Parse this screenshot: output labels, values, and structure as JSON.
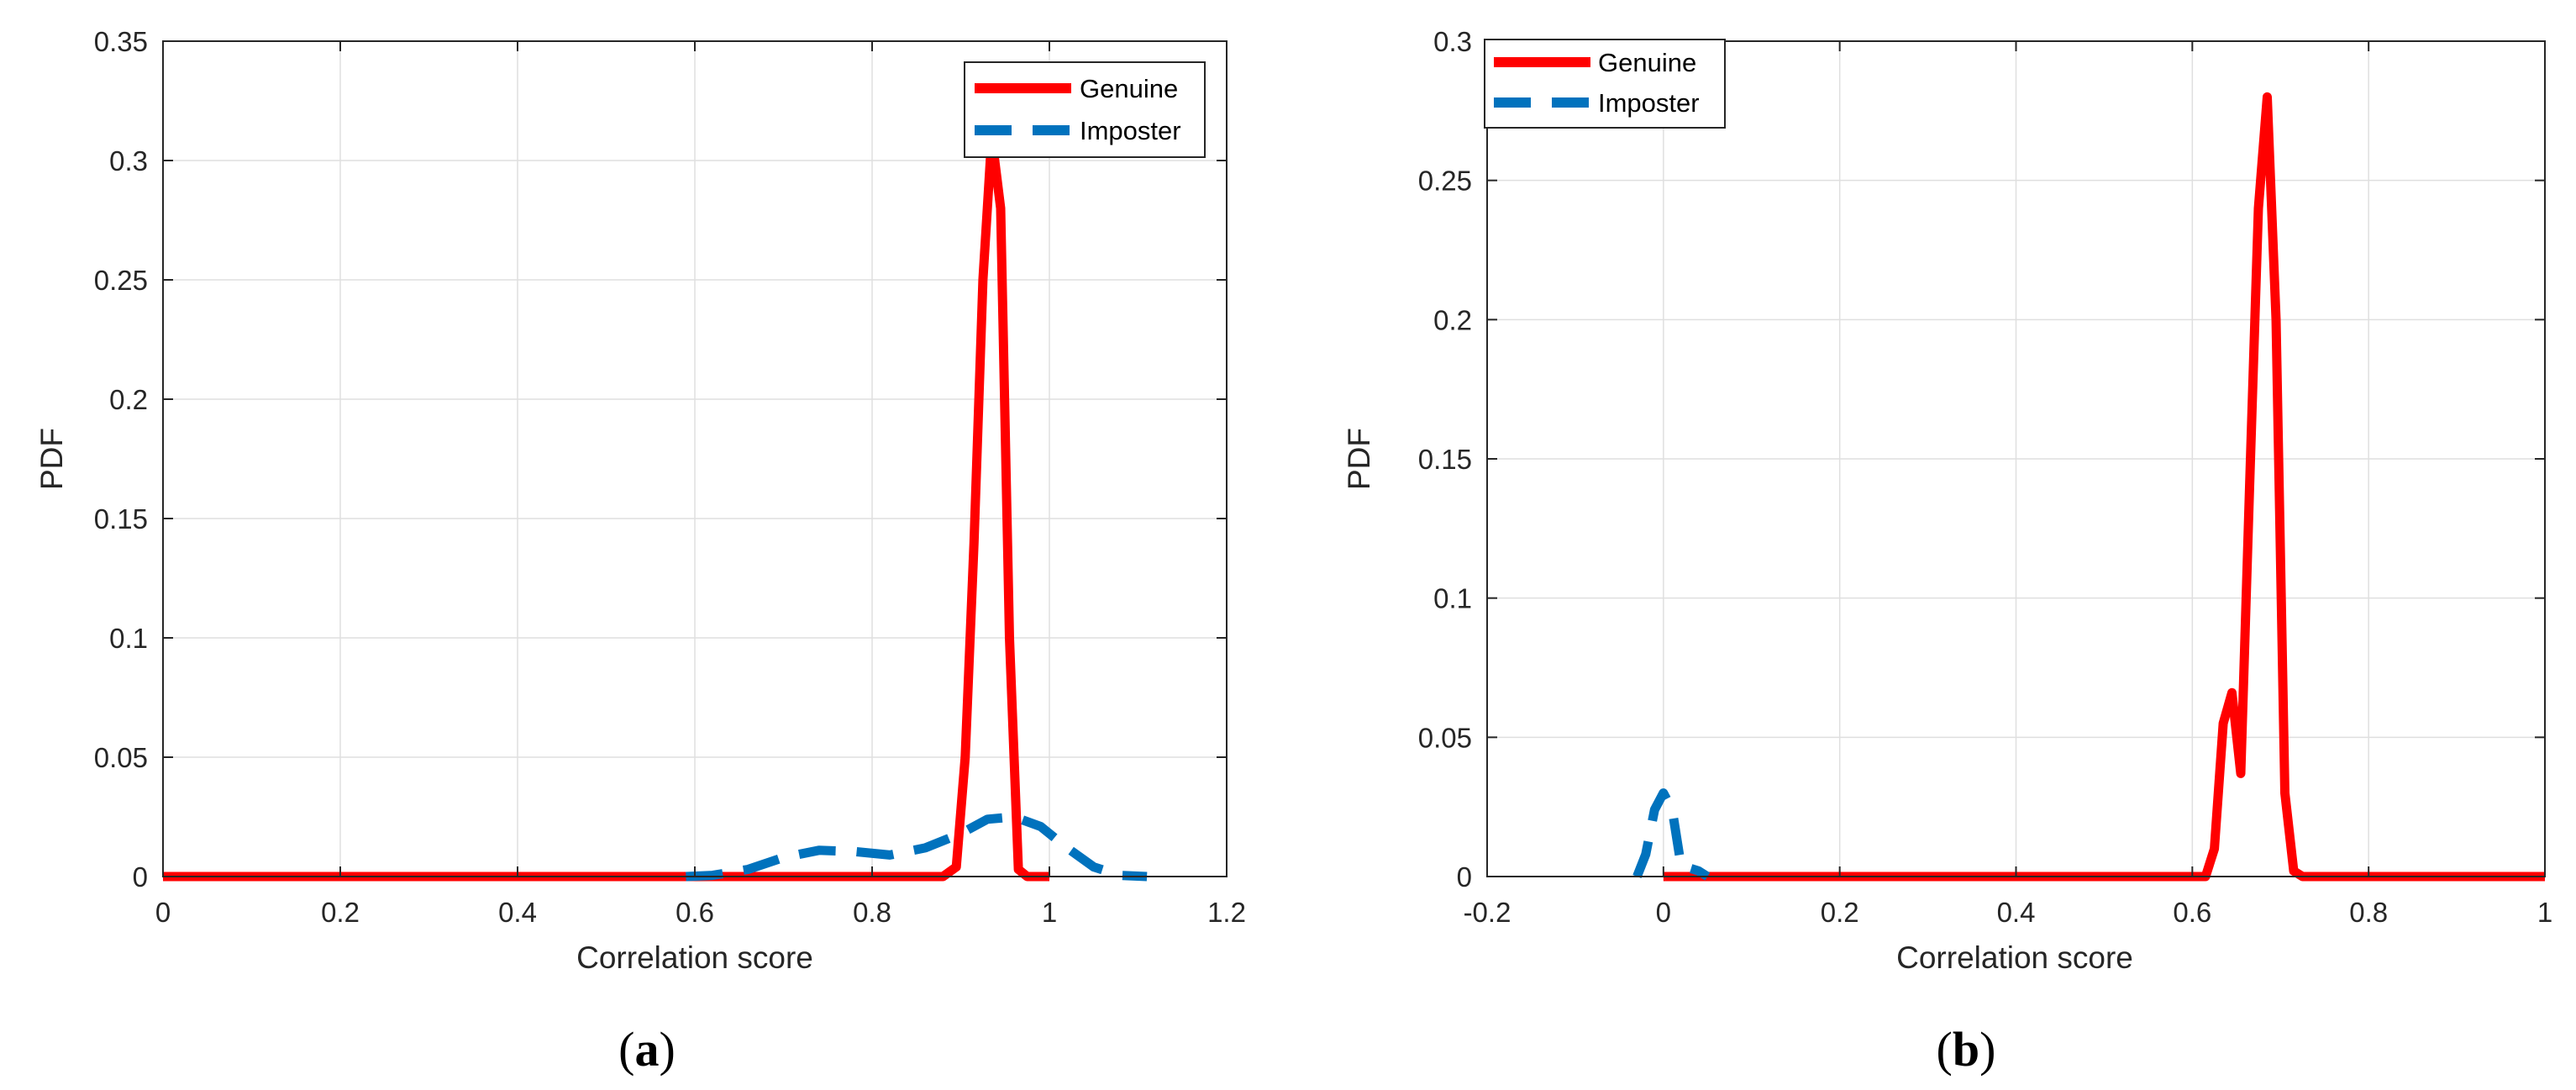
{
  "chart_data": [
    {
      "id": "a",
      "type": "line",
      "xlabel": "Correlation score",
      "ylabel": "PDF",
      "xlim": [
        0,
        1.2
      ],
      "ylim": [
        0,
        0.35
      ],
      "xticks": [
        "0",
        "0.2",
        "0.4",
        "0.6",
        "0.8",
        "1",
        "1.2"
      ],
      "yticks": [
        "0",
        "0.05",
        "0.1",
        "0.15",
        "0.2",
        "0.25",
        "0.3",
        "0.35"
      ],
      "xtick_values": [
        0,
        0.2,
        0.4,
        0.6,
        0.8,
        1.0,
        1.2
      ],
      "ytick_values": [
        0,
        0.05,
        0.1,
        0.15,
        0.2,
        0.25,
        0.3,
        0.35
      ],
      "grid": true,
      "legend_position": "top-right",
      "caption_letter": "a",
      "series": [
        {
          "name": "Genuine",
          "color": "#ff0000",
          "style": "solid",
          "x": [
            0,
            0.1,
            0.2,
            0.3,
            0.4,
            0.5,
            0.6,
            0.7,
            0.8,
            0.88,
            0.895,
            0.905,
            0.915,
            0.925,
            0.935,
            0.945,
            0.955,
            0.965,
            0.975,
            1.0
          ],
          "y": [
            0,
            0,
            0,
            0,
            0,
            0,
            0,
            0,
            0,
            0,
            0.004,
            0.05,
            0.14,
            0.25,
            0.31,
            0.28,
            0.1,
            0.003,
            0,
            0
          ]
        },
        {
          "name": "Imposter",
          "color": "#0072bd",
          "style": "dashed",
          "x": [
            0.59,
            0.62,
            0.66,
            0.7,
            0.74,
            0.78,
            0.82,
            0.86,
            0.9,
            0.93,
            0.96,
            0.99,
            1.02,
            1.05,
            1.08,
            1.11
          ],
          "y": [
            0,
            0.0005,
            0.003,
            0.008,
            0.011,
            0.0105,
            0.009,
            0.012,
            0.018,
            0.024,
            0.025,
            0.021,
            0.012,
            0.004,
            0.0005,
            0
          ]
        }
      ]
    },
    {
      "id": "b",
      "type": "line",
      "xlabel": "Correlation score",
      "ylabel": "PDF",
      "xlim": [
        -0.2,
        1
      ],
      "ylim": [
        0,
        0.3
      ],
      "xticks": [
        "-0.2",
        "0",
        "0.2",
        "0.4",
        "0.6",
        "0.8",
        "1"
      ],
      "yticks": [
        "0",
        "0.05",
        "0.1",
        "0.15",
        "0.2",
        "0.25",
        "0.3"
      ],
      "xtick_values": [
        -0.2,
        0,
        0.2,
        0.4,
        0.6,
        0.8,
        1.0
      ],
      "ytick_values": [
        0,
        0.05,
        0.1,
        0.15,
        0.2,
        0.25,
        0.3
      ],
      "grid": true,
      "legend_position": "top-left",
      "caption_letter": "b",
      "series": [
        {
          "name": "Genuine",
          "color": "#ff0000",
          "style": "solid",
          "x": [
            0,
            0.1,
            0.2,
            0.3,
            0.4,
            0.5,
            0.6,
            0.615,
            0.625,
            0.635,
            0.645,
            0.655,
            0.665,
            0.675,
            0.685,
            0.695,
            0.705,
            0.715,
            0.725,
            0.8,
            0.9,
            1.0
          ],
          "y": [
            0,
            0,
            0,
            0,
            0,
            0,
            0,
            0,
            0.01,
            0.055,
            0.066,
            0.037,
            0.14,
            0.24,
            0.28,
            0.2,
            0.03,
            0.002,
            0,
            0,
            0,
            0
          ]
        },
        {
          "name": "Imposter",
          "color": "#0072bd",
          "style": "dashed",
          "x": [
            -0.03,
            -0.02,
            -0.01,
            0.0,
            0.01,
            0.02,
            0.03,
            0.04,
            0.05
          ],
          "y": [
            0,
            0.008,
            0.024,
            0.03,
            0.024,
            0.004,
            0.003,
            0.002,
            0
          ]
        }
      ]
    }
  ]
}
